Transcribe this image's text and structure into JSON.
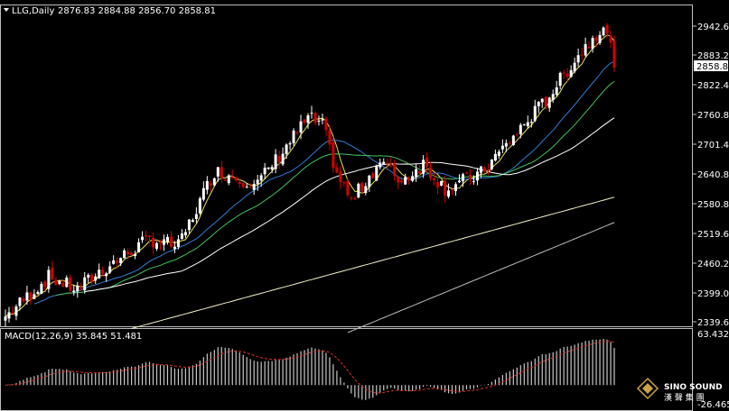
{
  "header": {
    "symbol_label": "LLG,Daily",
    "ohlc_values": "2876.83 2884.88 2856.70 2858.81"
  },
  "price_axis": {
    "ticks": [
      "2942.60",
      "2883.20",
      "2822.40",
      "2760.80",
      "2701.40",
      "2640.80",
      "2580.80",
      "2519.60",
      "2460.20",
      "2399.00",
      "2339.60"
    ],
    "current_price": "2858.81"
  },
  "macd": {
    "label": "MACD(12,26,9) 35.845 51.481",
    "axis_max": "63.432",
    "axis_min": "-26.465"
  },
  "logo": {
    "line1": "SINO SOUND",
    "line2": "漢 聲 集 團"
  },
  "colors": {
    "background": "#000000",
    "bull_candle": "#ffffff",
    "bear_candle": "#d40000",
    "ma_fast": "#e8e35a",
    "ma_blue": "#2e7fd9",
    "ma_green": "#43c25a",
    "ma_white": "#ffffff",
    "ma_cream": "#f6f2c8",
    "ma_gray": "#bdbdbd",
    "macd_hist": "#c8c8c8",
    "macd_signal": "#e0302a"
  },
  "chart_data": {
    "type": "candlestick",
    "price_range": [
      2339.6,
      2962.6
    ],
    "macd_range": [
      -26.465,
      63.432
    ]
  }
}
